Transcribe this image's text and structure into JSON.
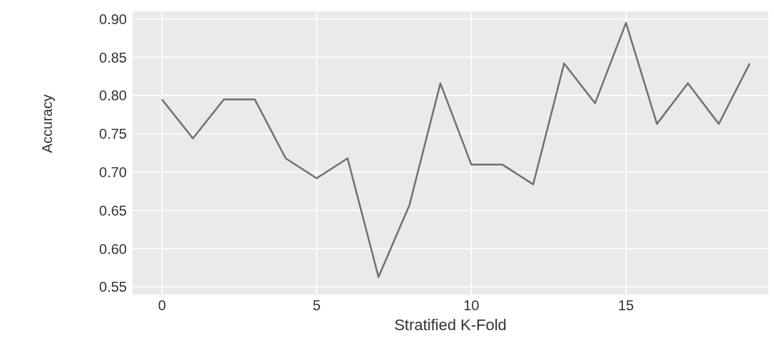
{
  "chart_data": {
    "type": "line",
    "xlabel": "Stratified K-Fold",
    "ylabel": "Accuracy",
    "x": [
      0,
      1,
      2,
      3,
      4,
      5,
      6,
      7,
      8,
      9,
      10,
      11,
      12,
      13,
      14,
      15,
      16,
      17,
      18,
      19
    ],
    "series": [
      {
        "color": "#707070",
        "values": [
          0.795,
          0.744,
          0.795,
          0.795,
          0.718,
          0.692,
          0.718,
          0.563,
          0.657,
          0.816,
          0.71,
          0.71,
          0.684,
          0.842,
          0.79,
          0.895,
          0.763,
          0.816,
          0.763,
          0.842
        ]
      }
    ],
    "xlim": [
      -0.95,
      19.6
    ],
    "xticks": [
      0,
      5,
      10,
      15
    ],
    "ylim": [
      0.54,
      0.91
    ],
    "yticks": [
      0.55,
      {
        "value": 0.6,
        "label": "0.60"
      },
      0.65,
      {
        "value": 0.7,
        "label": "0.70"
      },
      0.75,
      {
        "value": 0.8,
        "label": "0.80"
      },
      0.85,
      {
        "value": 0.9,
        "label": "0.90"
      }
    ],
    "grid": true,
    "legend": false,
    "marker": "none",
    "line_style": "solid"
  }
}
